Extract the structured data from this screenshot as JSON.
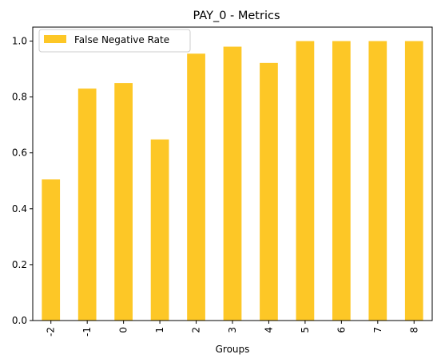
{
  "chart_data": {
    "type": "bar",
    "title": "PAY_0 - Metrics",
    "xlabel": "Groups",
    "ylabel": "",
    "categories": [
      "-2",
      "-1",
      "0",
      "1",
      "2",
      "3",
      "4",
      "5",
      "6",
      "7",
      "8"
    ],
    "series": [
      {
        "name": "False Negative Rate",
        "values": [
          0.505,
          0.83,
          0.85,
          0.648,
          0.955,
          0.98,
          0.922,
          1.0,
          1.0,
          1.0,
          1.0
        ],
        "color": "#fdc726"
      }
    ],
    "ylim": [
      0,
      1.05
    ],
    "yticks": [
      "0.0",
      "0.2",
      "0.4",
      "0.6",
      "0.8",
      "1.0"
    ],
    "legend_position": "upper-left",
    "grid": false
  }
}
